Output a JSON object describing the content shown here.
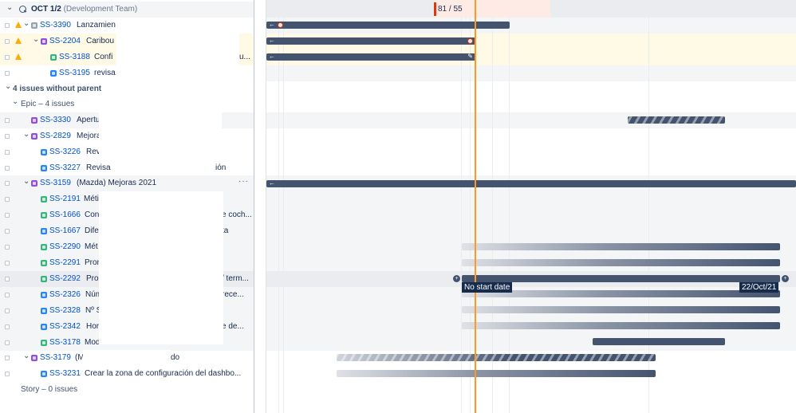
{
  "sprint": {
    "title": "OCT 1/2",
    "team": "(Development Team)",
    "count": "81 / 55"
  },
  "groups": {
    "no_parent": "4 issues without parent",
    "epic": "Epic – 4 issues",
    "story": "Story – 0 issues"
  },
  "issues": [
    {
      "key": "SS-3390",
      "summary": "Lanzamien"
    },
    {
      "key": "SS-2204",
      "summary": "Caribou"
    },
    {
      "key": "SS-3188",
      "summary": "Confi"
    },
    {
      "key": "SS-3195",
      "summary": "revisa"
    },
    {
      "key": "SS-3330",
      "summary": "Apertu"
    },
    {
      "key": "SS-2829",
      "summary": "Mejora"
    },
    {
      "key": "SS-3226",
      "summary": "Rev"
    },
    {
      "key": "SS-3227",
      "summary": "Revisa"
    },
    {
      "key": "SS-3159",
      "summary": "(Mazda) Mejoras 2021"
    },
    {
      "key": "SS-2191",
      "summary": "Méti"
    },
    {
      "key": "SS-1666",
      "summary": "Con"
    },
    {
      "key": "SS-1667",
      "summary": "Dife"
    },
    {
      "key": "SS-2290",
      "summary": "Mét"
    },
    {
      "key": "SS-2291",
      "summary": "Pron"
    },
    {
      "key": "SS-2292",
      "summary": "Pro"
    },
    {
      "key": "SS-2326",
      "summary": "Núm"
    },
    {
      "key": "SS-2328",
      "summary": "Nº S"
    },
    {
      "key": "SS-2342",
      "summary": "Hor"
    },
    {
      "key": "SS-3178",
      "summary": "Mod"
    },
    {
      "key": "SS-3179",
      "summary": "(M"
    },
    {
      "key": "SS-3231",
      "summary": "Crear la zona de configuración del dashbo..."
    }
  ],
  "partial_text": {
    "ss3188_tail": "u...",
    "ss3227_tail": "ión",
    "ss1666_tail": "e coch...",
    "ss1667_tail": "ta",
    "ss2292_tail": "/ term...",
    "ss2326_tail": "rece...",
    "ss2342_tail": "e de...",
    "ss3179_tail": "do"
  },
  "row_actions": {
    "more": "···"
  },
  "timeline": {
    "no_start_label": "No start date",
    "end_date_label": "22/Oct/21",
    "colors": {
      "bar": "#44546f",
      "today": "#ff991f",
      "sprint_fill": "#ffebe6",
      "sprint_marker": "#de350b"
    }
  }
}
